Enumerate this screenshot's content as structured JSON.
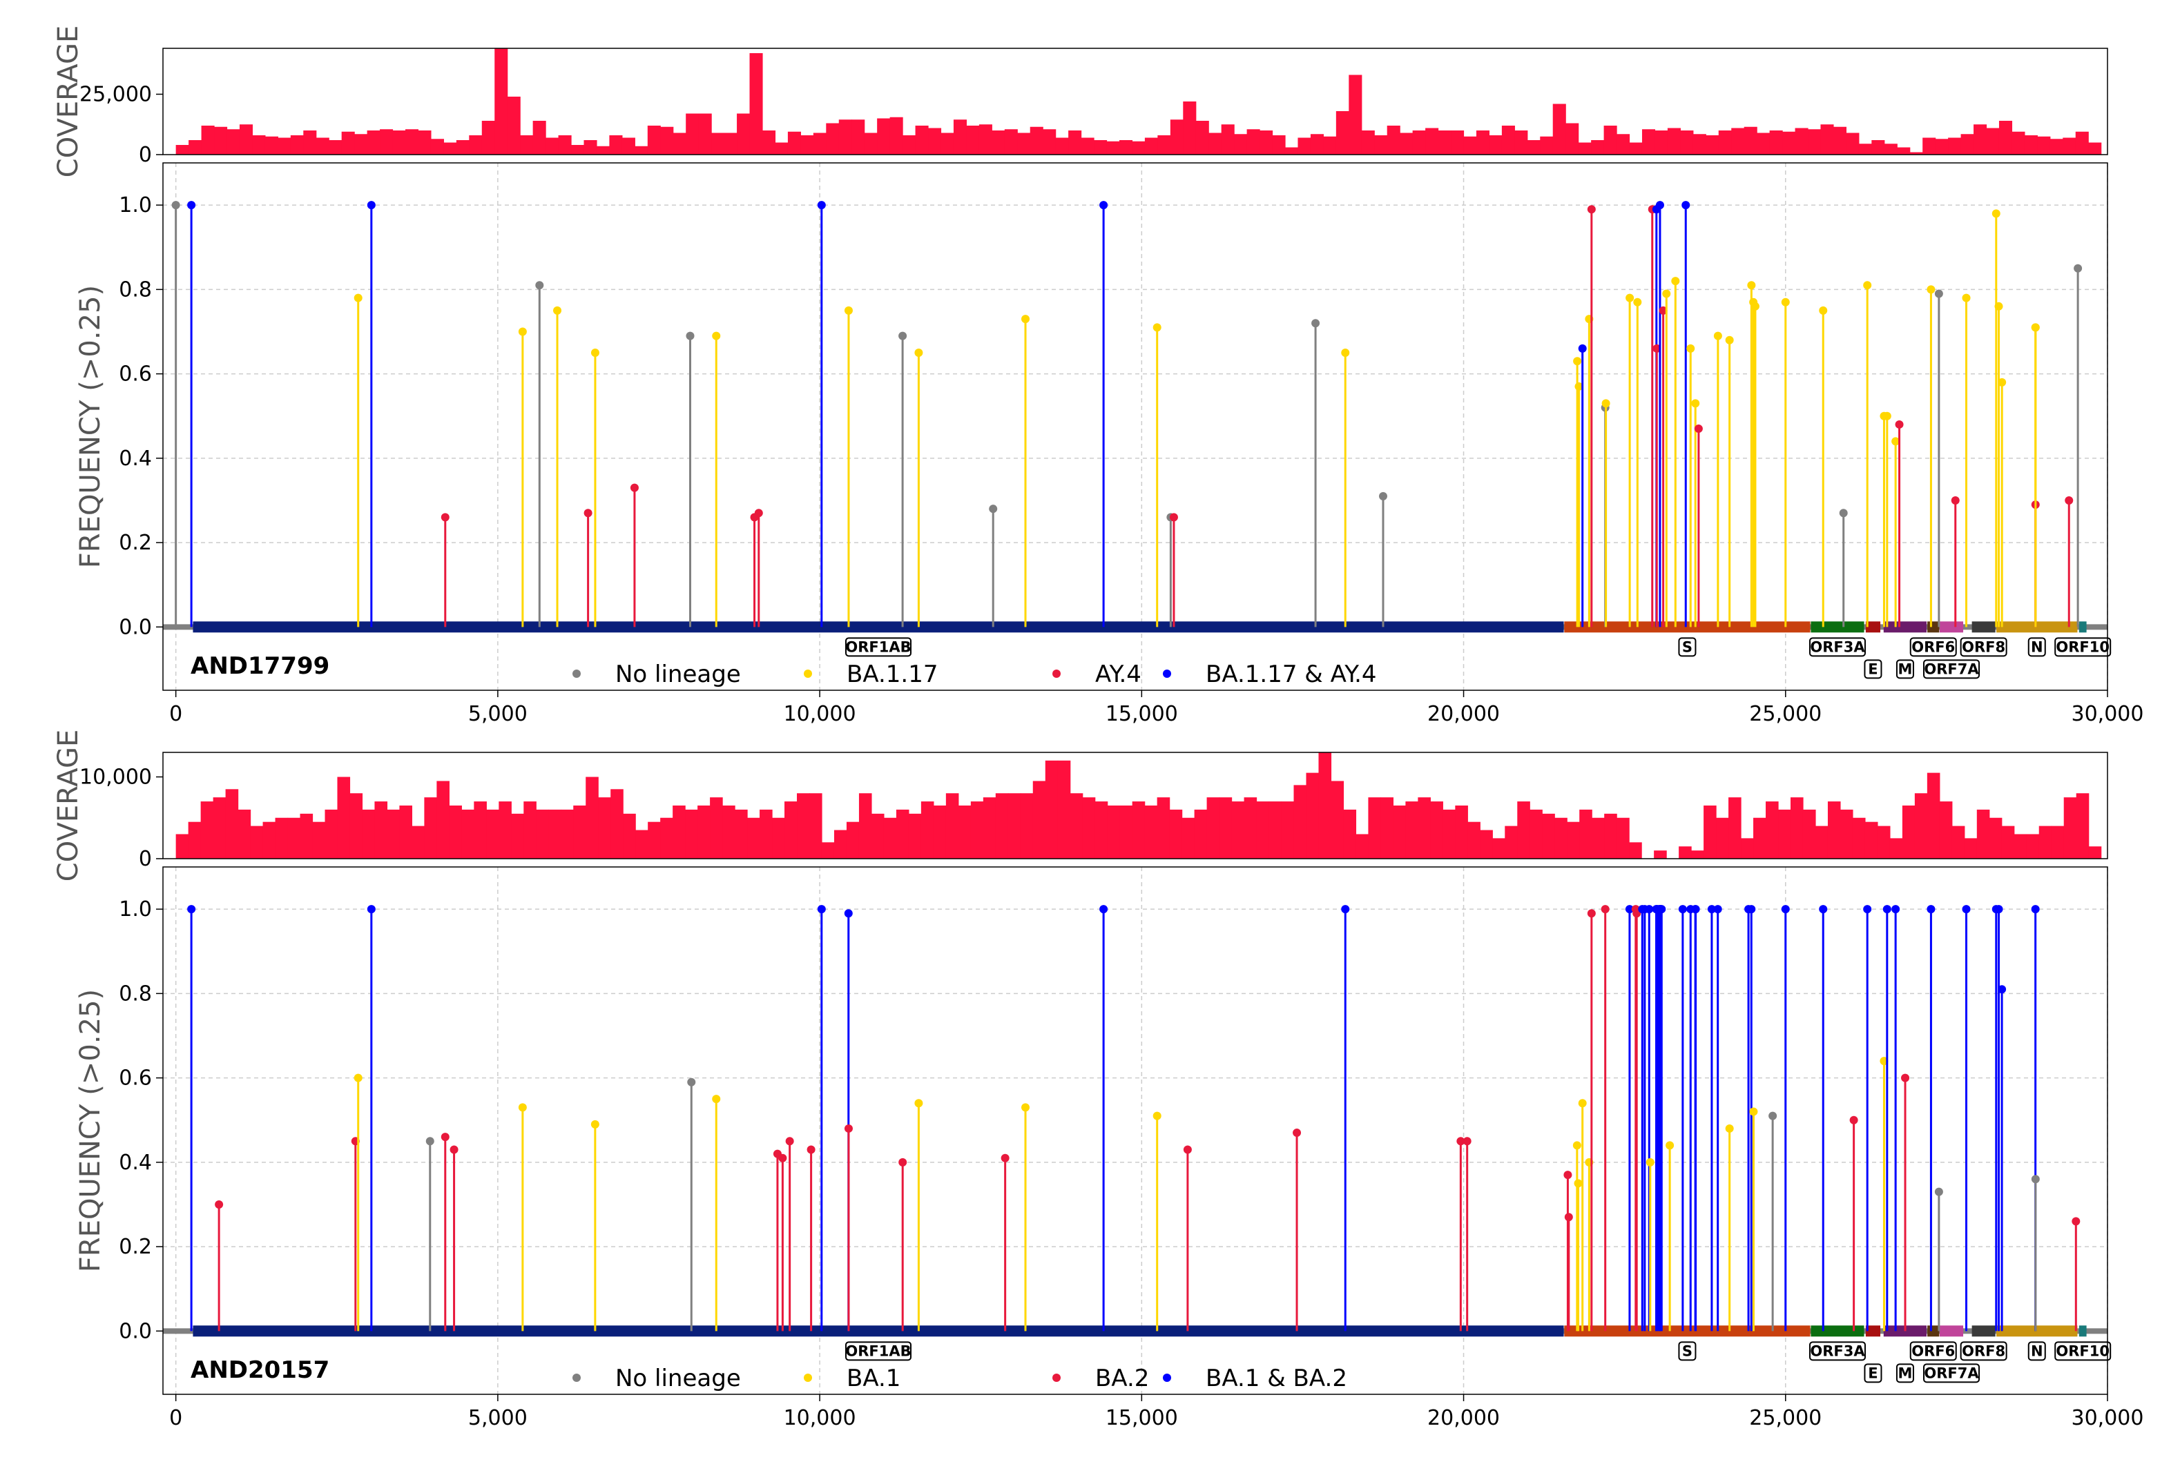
{
  "chart_data": [
    {
      "type": "bar+lollipop",
      "sample": "AND17799",
      "coverage_axis_label": "COVERAGE",
      "coverage_ticks": [
        0,
        25000
      ],
      "coverage_tick_labels": [
        "0",
        "25,000"
      ],
      "coverage_ylim": [
        0,
        44000
      ],
      "coverage_bins_x": [
        [
          0,
          10,
          15
        ],
        [
          0,
          30,
          15
        ]
      ],
      "coverage": [
        4000,
        6000,
        12000,
        11500,
        10500,
        12500,
        8000,
        7500,
        7000,
        8000,
        10000,
        7000,
        6000,
        9500,
        8500,
        10000,
        10500,
        10000,
        10500,
        10000,
        6500,
        5000,
        6000,
        8000,
        14000,
        48000,
        24000,
        8000,
        14000,
        7000,
        8000,
        4000,
        6000,
        3500,
        8000,
        7000,
        3500,
        12000,
        11500,
        9000,
        17000,
        17000,
        9000,
        9000,
        17000,
        42000,
        10000,
        5000,
        9500,
        8000,
        9000,
        13000,
        14500,
        14500,
        9000,
        15000,
        15500,
        8000,
        12000,
        11000,
        9000,
        14500,
        12000,
        12500,
        10000,
        10500,
        9000,
        11500,
        10500,
        7000,
        10000,
        7000,
        6000,
        5500,
        6000,
        5500,
        7000,
        8000,
        14500,
        22000,
        14000,
        9000,
        12500,
        8500,
        10500,
        10000,
        8000,
        3000,
        7000,
        8500,
        7500,
        18000,
        33000,
        10000,
        8000,
        12000,
        9000,
        10000,
        11000,
        10000,
        10000,
        7500,
        10000,
        8000,
        12000,
        10000,
        6000,
        7500,
        21000,
        13000,
        5000,
        6000,
        12000,
        8500,
        5000,
        10500,
        10000,
        11000,
        10000,
        8500,
        8000,
        10000,
        11000,
        11500,
        9000,
        10000,
        9500,
        11000,
        10500,
        12500,
        11500,
        9000,
        4500,
        6000,
        4500,
        3000,
        1000,
        7000,
        6500,
        7000,
        8500,
        12500,
        11000,
        14000,
        9500,
        8000,
        7500,
        6500,
        7000,
        9500,
        5000
      ],
      "x_ticks": [
        0,
        5000,
        10000,
        15000,
        20000,
        25000,
        30000
      ],
      "x_tick_labels": [
        "0",
        "5,000",
        "10,000",
        "15,000",
        "20,000",
        "25,000",
        "30,000"
      ],
      "x_range": [
        -200,
        30000
      ],
      "freq_axis_label": "FREQUENCY (>0.25)",
      "freq_ylim": [
        -0.15,
        1.1
      ],
      "freq_ticks": [
        0.0,
        0.2,
        0.4,
        0.6,
        0.8,
        1.0
      ],
      "freq_tick_labels": [
        "0.0",
        "0.2",
        "0.4",
        "0.6",
        "0.8",
        "1.0"
      ],
      "legend": [
        {
          "label": "No lineage",
          "color": "#808080"
        },
        {
          "label": "BA.1.17",
          "color": "#FFD700"
        },
        {
          "label": "AY.4",
          "color": "#E8193C"
        },
        {
          "label": "BA.1.17 & AY.4",
          "color": "#0000FF"
        }
      ],
      "mutations": [
        [
          0,
          1.0,
          "grey"
        ],
        [
          241,
          1.0,
          "blue"
        ],
        [
          2832,
          0.78,
          "yellow"
        ],
        [
          3037,
          1.0,
          "blue"
        ],
        [
          4184,
          0.26,
          "red"
        ],
        [
          5386,
          0.7,
          "yellow"
        ],
        [
          5648,
          0.81,
          "grey"
        ],
        [
          5924,
          0.75,
          "yellow"
        ],
        [
          6402,
          0.27,
          "red"
        ],
        [
          6513,
          0.65,
          "yellow"
        ],
        [
          7124,
          0.33,
          "red"
        ],
        [
          7988,
          0.69,
          "grey"
        ],
        [
          8393,
          0.69,
          "yellow"
        ],
        [
          8986,
          0.26,
          "red"
        ],
        [
          9053,
          0.27,
          "red"
        ],
        [
          10029,
          1.0,
          "blue"
        ],
        [
          10449,
          0.75,
          "yellow"
        ],
        [
          11287,
          0.69,
          "grey"
        ],
        [
          11537,
          0.65,
          "yellow"
        ],
        [
          12693,
          0.28,
          "grey"
        ],
        [
          13195,
          0.73,
          "yellow"
        ],
        [
          14408,
          1.0,
          "blue"
        ],
        [
          15240,
          0.71,
          "yellow"
        ],
        [
          15451,
          0.26,
          "grey"
        ],
        [
          15500,
          0.26,
          "red"
        ],
        [
          17700,
          0.72,
          "grey"
        ],
        [
          18163,
          0.65,
          "yellow"
        ],
        [
          18750,
          0.31,
          "grey"
        ],
        [
          21765,
          0.63,
          "yellow"
        ],
        [
          21790,
          0.57,
          "yellow"
        ],
        [
          21846,
          0.66,
          "blue"
        ],
        [
          21950,
          0.73,
          "yellow"
        ],
        [
          21987,
          0.99,
          "red"
        ],
        [
          22200,
          0.52,
          "grey"
        ],
        [
          22210,
          0.53,
          "yellow"
        ],
        [
          22580,
          0.78,
          "yellow"
        ],
        [
          22700,
          0.77,
          "yellow"
        ],
        [
          22930,
          0.99,
          "red"
        ],
        [
          22995,
          0.99,
          "blue"
        ],
        [
          23000,
          0.66,
          "red"
        ],
        [
          23050,
          1.0,
          "blue"
        ],
        [
          23100,
          0.75,
          "red"
        ],
        [
          23150,
          0.79,
          "yellow"
        ],
        [
          23290,
          0.82,
          "yellow"
        ],
        [
          23450,
          1.0,
          "blue"
        ],
        [
          23525,
          0.66,
          "yellow"
        ],
        [
          23600,
          0.53,
          "yellow"
        ],
        [
          23650,
          0.47,
          "red"
        ],
        [
          23950,
          0.69,
          "yellow"
        ],
        [
          24130,
          0.68,
          "yellow"
        ],
        [
          24470,
          0.81,
          "yellow"
        ],
        [
          24500,
          0.77,
          "yellow"
        ],
        [
          24530,
          0.76,
          "yellow"
        ],
        [
          25000,
          0.77,
          "yellow"
        ],
        [
          25584,
          0.75,
          "yellow"
        ],
        [
          26270,
          0.81,
          "yellow"
        ],
        [
          25900,
          0.27,
          "grey"
        ],
        [
          26530,
          0.5,
          "yellow"
        ],
        [
          26577,
          0.5,
          "yellow"
        ],
        [
          26709,
          0.44,
          "yellow"
        ],
        [
          26767,
          0.48,
          "red"
        ],
        [
          27259,
          0.8,
          "yellow"
        ],
        [
          27382,
          0.79,
          "grey"
        ],
        [
          27638,
          0.3,
          "red"
        ],
        [
          27807,
          0.78,
          "yellow"
        ],
        [
          28271,
          0.98,
          "yellow"
        ],
        [
          28311,
          0.76,
          "yellow"
        ],
        [
          28361,
          0.58,
          "yellow"
        ],
        [
          28881,
          0.71,
          "yellow"
        ],
        [
          28882,
          0.29,
          "red"
        ],
        [
          28883,
          0.71,
          "yellow"
        ],
        [
          29402,
          0.3,
          "red"
        ],
        [
          29540,
          0.85,
          "grey"
        ]
      ]
    },
    {
      "type": "bar+lollipop",
      "sample": "AND20157",
      "coverage_axis_label": "COVERAGE",
      "coverage_ticks": [
        0,
        10000
      ],
      "coverage_tick_labels": [
        "0",
        "10,000"
      ],
      "coverage_ylim": [
        0,
        13000
      ],
      "coverage": [
        3000,
        4500,
        7000,
        7500,
        8500,
        6000,
        4000,
        4500,
        5000,
        5000,
        5500,
        4500,
        6000,
        10000,
        8000,
        6000,
        7000,
        6000,
        6500,
        4000,
        7500,
        9500,
        6500,
        6000,
        7000,
        6000,
        7000,
        5500,
        7000,
        6000,
        6000,
        6000,
        6500,
        10000,
        7500,
        8500,
        5500,
        3500,
        4500,
        5000,
        6500,
        6000,
        6500,
        7500,
        6500,
        6000,
        5000,
        6000,
        5000,
        7000,
        8000,
        8000,
        2000,
        3500,
        4500,
        8000,
        5500,
        5000,
        6000,
        5500,
        7000,
        6500,
        8000,
        6500,
        7000,
        7500,
        8000,
        8000,
        8000,
        9500,
        12000,
        12000,
        8000,
        7500,
        7000,
        6500,
        6500,
        7000,
        6500,
        7500,
        6000,
        5000,
        6000,
        7500,
        7500,
        7000,
        7500,
        7000,
        7000,
        7000,
        9000,
        10500,
        13000,
        9500,
        6000,
        3000,
        7500,
        7500,
        6500,
        7000,
        7500,
        7000,
        6000,
        6500,
        4500,
        3500,
        2500,
        4000,
        7000,
        6000,
        5500,
        5000,
        4500,
        6000,
        5000,
        5500,
        5000,
        2000,
        0,
        1000,
        0,
        1500,
        1000,
        6500,
        5000,
        7500,
        2500,
        5000,
        7000,
        6000,
        7500,
        6000,
        4000,
        7000,
        6000,
        5000,
        4500,
        4000,
        2500,
        6500,
        8000,
        10500,
        7000,
        4000,
        2500,
        6000,
        5000,
        4000,
        3000,
        3000,
        4000,
        4000,
        7500,
        8000,
        1500
      ],
      "x_ticks": [
        0,
        5000,
        10000,
        15000,
        20000,
        25000,
        30000
      ],
      "x_tick_labels": [
        "0",
        "5,000",
        "10,000",
        "15,000",
        "20,000",
        "25,000",
        "30,000"
      ],
      "x_range": [
        -200,
        30000
      ],
      "freq_axis_label": "FREQUENCY (>0.25)",
      "freq_ylim": [
        -0.15,
        1.1
      ],
      "freq_ticks": [
        0.0,
        0.2,
        0.4,
        0.6,
        0.8,
        1.0
      ],
      "freq_tick_labels": [
        "0.0",
        "0.2",
        "0.4",
        "0.6",
        "0.8",
        "1.0"
      ],
      "legend": [
        {
          "label": "No lineage",
          "color": "#808080"
        },
        {
          "label": "BA.1",
          "color": "#FFD700"
        },
        {
          "label": "BA.2",
          "color": "#E8193C"
        },
        {
          "label": "BA.1 & BA.2",
          "color": "#0000FF"
        }
      ],
      "mutations": [
        [
          241,
          1.0,
          "blue"
        ],
        [
          670,
          0.3,
          "red"
        ],
        [
          2790,
          0.45,
          "red"
        ],
        [
          2832,
          0.6,
          "yellow"
        ],
        [
          3037,
          1.0,
          "blue"
        ],
        [
          3948,
          0.45,
          "grey"
        ],
        [
          4184,
          0.46,
          "red"
        ],
        [
          4321,
          0.43,
          "red"
        ],
        [
          5386,
          0.53,
          "yellow"
        ],
        [
          6512,
          0.49,
          "yellow"
        ],
        [
          8007,
          0.59,
          "grey"
        ],
        [
          8393,
          0.55,
          "yellow"
        ],
        [
          9344,
          0.42,
          "red"
        ],
        [
          9424,
          0.41,
          "red"
        ],
        [
          9534,
          0.45,
          "red"
        ],
        [
          9866,
          0.43,
          "red"
        ],
        [
          10029,
          1.0,
          "blue"
        ],
        [
          10447,
          0.99,
          "blue"
        ],
        [
          10449,
          0.48,
          "red"
        ],
        [
          11288,
          0.4,
          "red"
        ],
        [
          11537,
          0.54,
          "yellow"
        ],
        [
          12880,
          0.41,
          "red"
        ],
        [
          13195,
          0.53,
          "yellow"
        ],
        [
          14408,
          1.0,
          "blue"
        ],
        [
          15240,
          0.51,
          "yellow"
        ],
        [
          15714,
          0.43,
          "red"
        ],
        [
          17410,
          0.47,
          "red"
        ],
        [
          18163,
          1.0,
          "blue"
        ],
        [
          19955,
          0.45,
          "red"
        ],
        [
          20055,
          0.45,
          "red"
        ],
        [
          21618,
          0.37,
          "red"
        ],
        [
          21633,
          0.27,
          "red"
        ],
        [
          21762,
          0.44,
          "yellow"
        ],
        [
          21780,
          0.35,
          "yellow"
        ],
        [
          21846,
          0.54,
          "yellow"
        ],
        [
          21950,
          0.4,
          "yellow"
        ],
        [
          21987,
          0.99,
          "red"
        ],
        [
          22200,
          1.0,
          "red"
        ],
        [
          22578,
          1.0,
          "blue"
        ],
        [
          22673,
          1.0,
          "red"
        ],
        [
          22688,
          0.99,
          "red"
        ],
        [
          22775,
          1.0,
          "blue"
        ],
        [
          22813,
          1.0,
          "blue"
        ],
        [
          22882,
          1.0,
          "blue"
        ],
        [
          22898,
          0.4,
          "yellow"
        ],
        [
          22992,
          1.0,
          "blue"
        ],
        [
          22995,
          1.0,
          "blue"
        ],
        [
          23013,
          1.0,
          "blue"
        ],
        [
          23040,
          1.0,
          "blue"
        ],
        [
          23048,
          1.0,
          "blue"
        ],
        [
          23055,
          1.0,
          "blue"
        ],
        [
          23063,
          1.0,
          "blue"
        ],
        [
          23075,
          1.0,
          "blue"
        ],
        [
          23202,
          0.44,
          "yellow"
        ],
        [
          23403,
          1.0,
          "blue"
        ],
        [
          23525,
          1.0,
          "blue"
        ],
        [
          23599,
          1.0,
          "blue"
        ],
        [
          23604,
          1.0,
          "blue"
        ],
        [
          23854,
          1.0,
          "blue"
        ],
        [
          23948,
          1.0,
          "blue"
        ],
        [
          24130,
          0.48,
          "yellow"
        ],
        [
          24424,
          1.0,
          "blue"
        ],
        [
          24469,
          1.0,
          "blue"
        ],
        [
          24503,
          0.52,
          "yellow"
        ],
        [
          24800,
          0.51,
          "grey"
        ],
        [
          25000,
          1.0,
          "blue"
        ],
        [
          25584,
          1.0,
          "blue"
        ],
        [
          26060,
          0.5,
          "red"
        ],
        [
          26270,
          1.0,
          "blue"
        ],
        [
          26530,
          0.64,
          "yellow"
        ],
        [
          26577,
          1.0,
          "blue"
        ],
        [
          26709,
          1.0,
          "blue"
        ],
        [
          26858,
          0.6,
          "red"
        ],
        [
          27259,
          1.0,
          "blue"
        ],
        [
          27382,
          0.33,
          "grey"
        ],
        [
          27807,
          1.0,
          "blue"
        ],
        [
          28271,
          1.0,
          "blue"
        ],
        [
          28311,
          1.0,
          "blue"
        ],
        [
          28360,
          0.81,
          "blue"
        ],
        [
          28881,
          1.0,
          "blue"
        ],
        [
          28883,
          0.36,
          "grey"
        ],
        [
          29510,
          0.26,
          "red"
        ]
      ]
    }
  ],
  "genes": [
    {
      "name": "ORF1AB",
      "start": 266,
      "end": 21555,
      "color": "#0A1F7A",
      "label_row": 1
    },
    {
      "name": "S",
      "start": 21563,
      "end": 25384,
      "color": "#C8400E",
      "label_row": 1
    },
    {
      "name": "ORF3A",
      "start": 25393,
      "end": 26220,
      "color": "#0B6E10",
      "label_row": 1
    },
    {
      "name": "E",
      "start": 26245,
      "end": 26472,
      "color": "#A81010",
      "label_row": 2
    },
    {
      "name": "M",
      "start": 26523,
      "end": 27191,
      "color": "#6A1B6A",
      "label_row": 2
    },
    {
      "name": "ORF6",
      "start": 27202,
      "end": 27387,
      "color": "#5A3510",
      "label_row": 1
    },
    {
      "name": "ORF7A",
      "start": 27394,
      "end": 27759,
      "color": "#C0449A",
      "label_row": 2
    },
    {
      "name": "ORF8",
      "start": 27894,
      "end": 28259,
      "color": "#3A3A3A",
      "label_row": 1
    },
    {
      "name": "N",
      "start": 28274,
      "end": 29533,
      "color": "#C99410",
      "label_row": 1
    },
    {
      "name": "ORF10",
      "start": 29558,
      "end": 29674,
      "color": "#1A7A7A",
      "label_row": 1
    }
  ],
  "colors": {
    "coverage_fill": "#FF0F3D",
    "grey": "#808080",
    "yellow": "#FFD700",
    "red": "#E8193C",
    "blue": "#0000FF",
    "grid": "#CCCCCC"
  }
}
